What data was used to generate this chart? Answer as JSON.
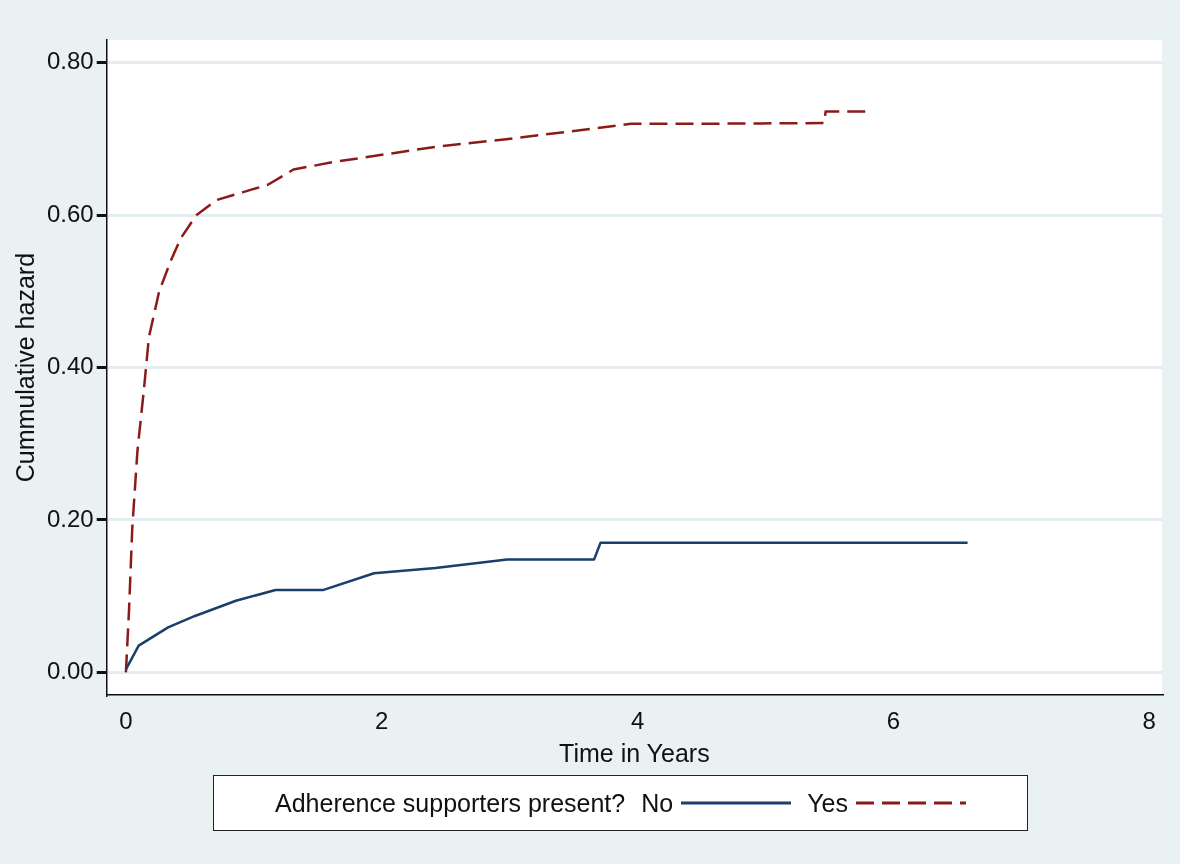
{
  "chart_data": {
    "type": "line",
    "xlabel": "Time in Years",
    "ylabel": "Cummulative hazard",
    "legend_title": "Adherence supporters present?",
    "xlim": [
      -0.15,
      8.1
    ],
    "xticks": [
      0,
      2,
      4,
      6,
      8
    ],
    "ylim": [
      -0.03,
      0.83
    ],
    "yticks": [
      {
        "value": 0,
        "label": "0.00"
      },
      {
        "value": 0.2,
        "label": "0.20"
      },
      {
        "value": 0.4,
        "label": "0.40"
      },
      {
        "value": 0.6,
        "label": "0.60"
      },
      {
        "value": 0.8,
        "label": "0.80"
      }
    ],
    "grid": "y",
    "legend": "bottom",
    "series": [
      {
        "name": "No",
        "color": "#1a3f6b",
        "line_style": "solid",
        "x": [
          0,
          0.1,
          0.33,
          0.54,
          0.86,
          1.17,
          1.54,
          1.94,
          2.42,
          2.98,
          3.66,
          3.71,
          6.58
        ],
        "values": [
          0.004,
          0.035,
          0.059,
          0.074,
          0.094,
          0.108,
          0.108,
          0.13,
          0.137,
          0.148,
          0.148,
          0.17,
          0.17
        ]
      },
      {
        "name": "Yes",
        "color": "#8b1a1a",
        "line_style": "dashed",
        "x": [
          0,
          0.024,
          0.05,
          0.09,
          0.14,
          0.18,
          0.26,
          0.35,
          0.43,
          0.55,
          0.71,
          0.91,
          1.11,
          1.31,
          1.63,
          2.03,
          2.43,
          2.99,
          3.47,
          3.95,
          4.43,
          5.46,
          5.47,
          5.78
        ],
        "values": [
          0,
          0.08,
          0.19,
          0.29,
          0.37,
          0.44,
          0.5,
          0.54,
          0.57,
          0.6,
          0.62,
          0.63,
          0.64,
          0.66,
          0.67,
          0.68,
          0.69,
          0.7,
          0.71,
          0.72,
          0.72,
          0.721,
          0.736,
          0.736
        ]
      }
    ]
  }
}
